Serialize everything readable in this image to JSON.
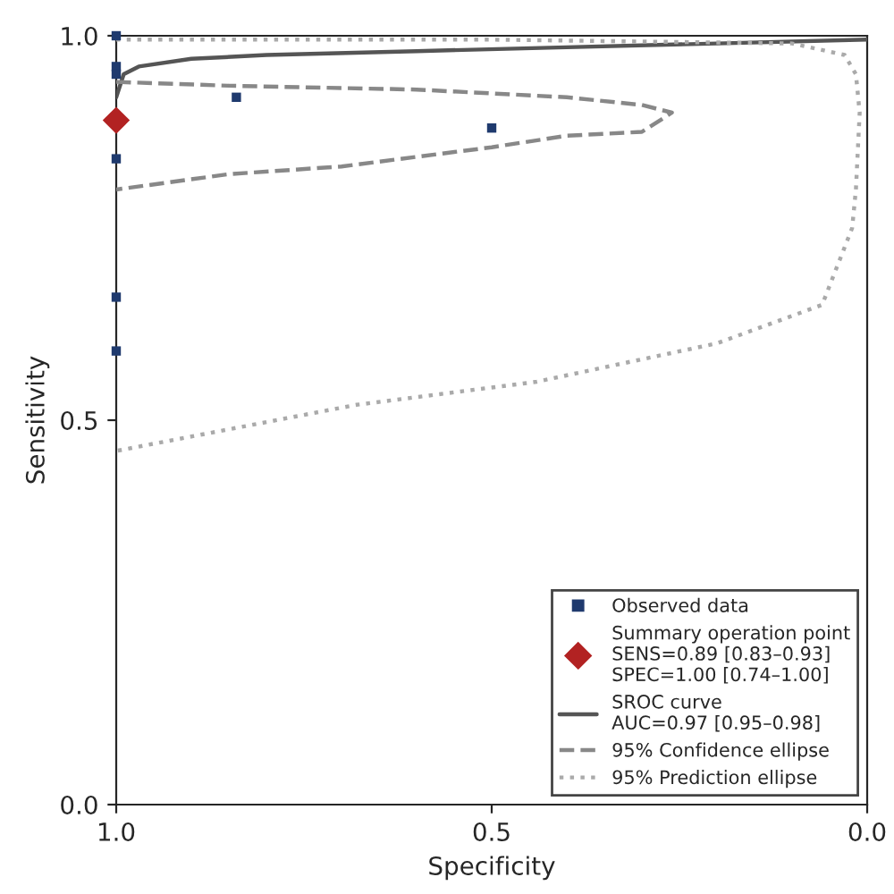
{
  "chart_data": {
    "type": "scatter",
    "xlabel": "Specificity",
    "ylabel": "Sensitivity",
    "xlim": [
      1.0,
      0.0
    ],
    "xticks": [
      {
        "value": 1.0,
        "label": "1.0"
      },
      0.5,
      {
        "value": 0.0,
        "label": "0.0"
      }
    ],
    "ylim": [
      0.0,
      1.0
    ],
    "yticks": [
      {
        "value": 0.0,
        "label": "0.0"
      },
      0.5,
      {
        "value": 1.0,
        "label": "1.0"
      }
    ],
    "grid": false,
    "legend": "bottom right",
    "series": [
      {
        "name": "Observed data",
        "marker": "square",
        "color": "#1f3a6e",
        "x": [
          1.0,
          1.0,
          1.0,
          1.0,
          1.0,
          1.0,
          0.84,
          0.5
        ],
        "values": [
          1.0,
          0.96,
          0.95,
          0.84,
          0.66,
          0.59,
          0.92,
          0.88
        ]
      },
      {
        "name": "Summary operation point\nSENS=0.89 [0.83–0.93]\nSPEC=1.00 [0.74–1.00]",
        "marker": "diamond",
        "color": "#b22222",
        "x": [
          1.0
        ],
        "values": [
          0.89
        ]
      },
      {
        "name": "SROC curve\nAUC=0.97 [0.95–0.98]",
        "type": "line",
        "line_style": "solid",
        "marker": "none",
        "color": "#555555",
        "x": [
          1.0,
          0.99,
          0.97,
          0.9,
          0.8,
          0.6,
          0.4,
          0.2,
          0.0
        ],
        "values": [
          0.92,
          0.95,
          0.96,
          0.97,
          0.975,
          0.98,
          0.985,
          0.99,
          0.995
        ]
      },
      {
        "name": "95% Confidence ellipse",
        "type": "line",
        "line_style": "dashed",
        "marker": "none",
        "color": "#888888",
        "x": [
          1.0,
          0.85,
          0.6,
          0.4,
          0.3,
          0.26,
          0.3,
          0.4,
          0.5,
          0.7,
          0.85,
          1.0
        ],
        "values": [
          0.94,
          0.935,
          0.93,
          0.92,
          0.91,
          0.9,
          0.875,
          0.87,
          0.855,
          0.83,
          0.82,
          0.8
        ]
      },
      {
        "name": "95% Prediction ellipse",
        "type": "line",
        "line_style": "dotted",
        "marker": "none",
        "color": "#aaaaaa",
        "x": [
          1.0,
          0.5,
          0.1,
          0.03,
          0.015,
          0.01,
          0.015,
          0.02,
          0.06,
          0.2,
          0.44,
          0.68,
          1.0
        ],
        "values": [
          0.995,
          0.995,
          0.99,
          0.975,
          0.95,
          0.9,
          0.8,
          0.75,
          0.65,
          0.6,
          0.55,
          0.52,
          0.46
        ]
      }
    ]
  }
}
